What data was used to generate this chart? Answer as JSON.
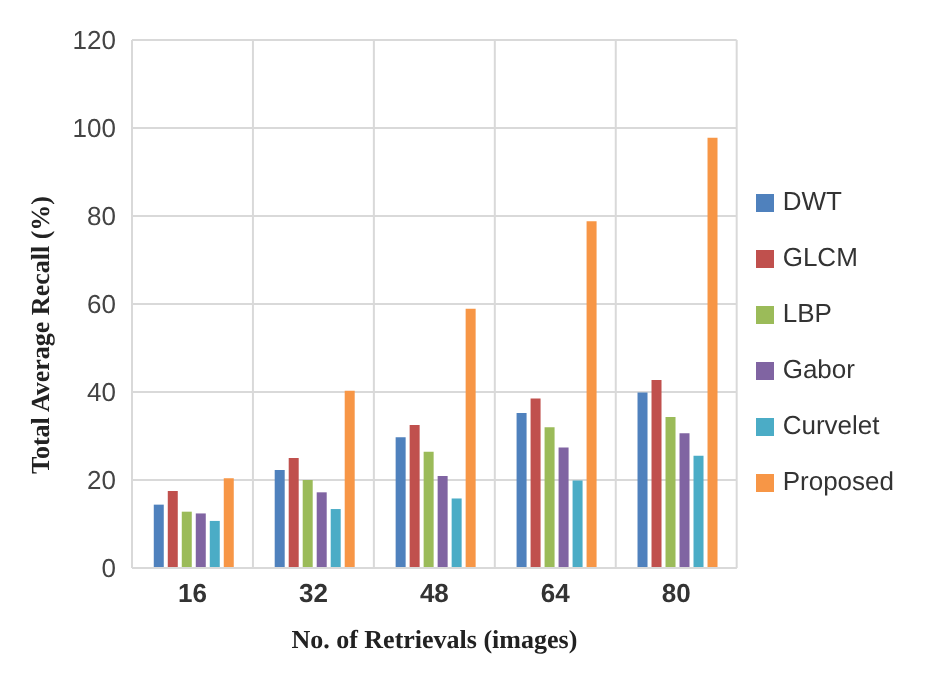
{
  "chart_data": {
    "type": "bar",
    "xlabel": "No. of Retrievals (images)",
    "ylabel": "Total Average Recall (%)",
    "categories": [
      "16",
      "32",
      "48",
      "64",
      "80"
    ],
    "series": [
      {
        "name": "DWT",
        "color": "#4f81bd",
        "values": [
          14.4,
          22.3,
          29.7,
          35.2,
          39.9
        ]
      },
      {
        "name": "GLCM",
        "color": "#c0504d",
        "values": [
          17.5,
          25,
          32.5,
          38.5,
          42.7
        ]
      },
      {
        "name": "LBP",
        "color": "#9bbb59",
        "values": [
          12.8,
          20,
          26.4,
          32,
          34.3
        ]
      },
      {
        "name": "Gabor",
        "color": "#8064a2",
        "values": [
          12.4,
          17.2,
          20.9,
          27.4,
          30.6
        ]
      },
      {
        "name": "Curvelet",
        "color": "#4bacc6",
        "values": [
          10.7,
          13.4,
          15.8,
          19.9,
          25.5
        ]
      },
      {
        "name": "Proposed",
        "color": "#f79646",
        "values": [
          20.4,
          40.3,
          58.9,
          78.8,
          97.8
        ]
      }
    ],
    "ylim": [
      0,
      120
    ],
    "yticks": [
      0,
      20,
      40,
      60,
      80,
      100,
      120
    ],
    "grid": true,
    "legend": "right"
  }
}
